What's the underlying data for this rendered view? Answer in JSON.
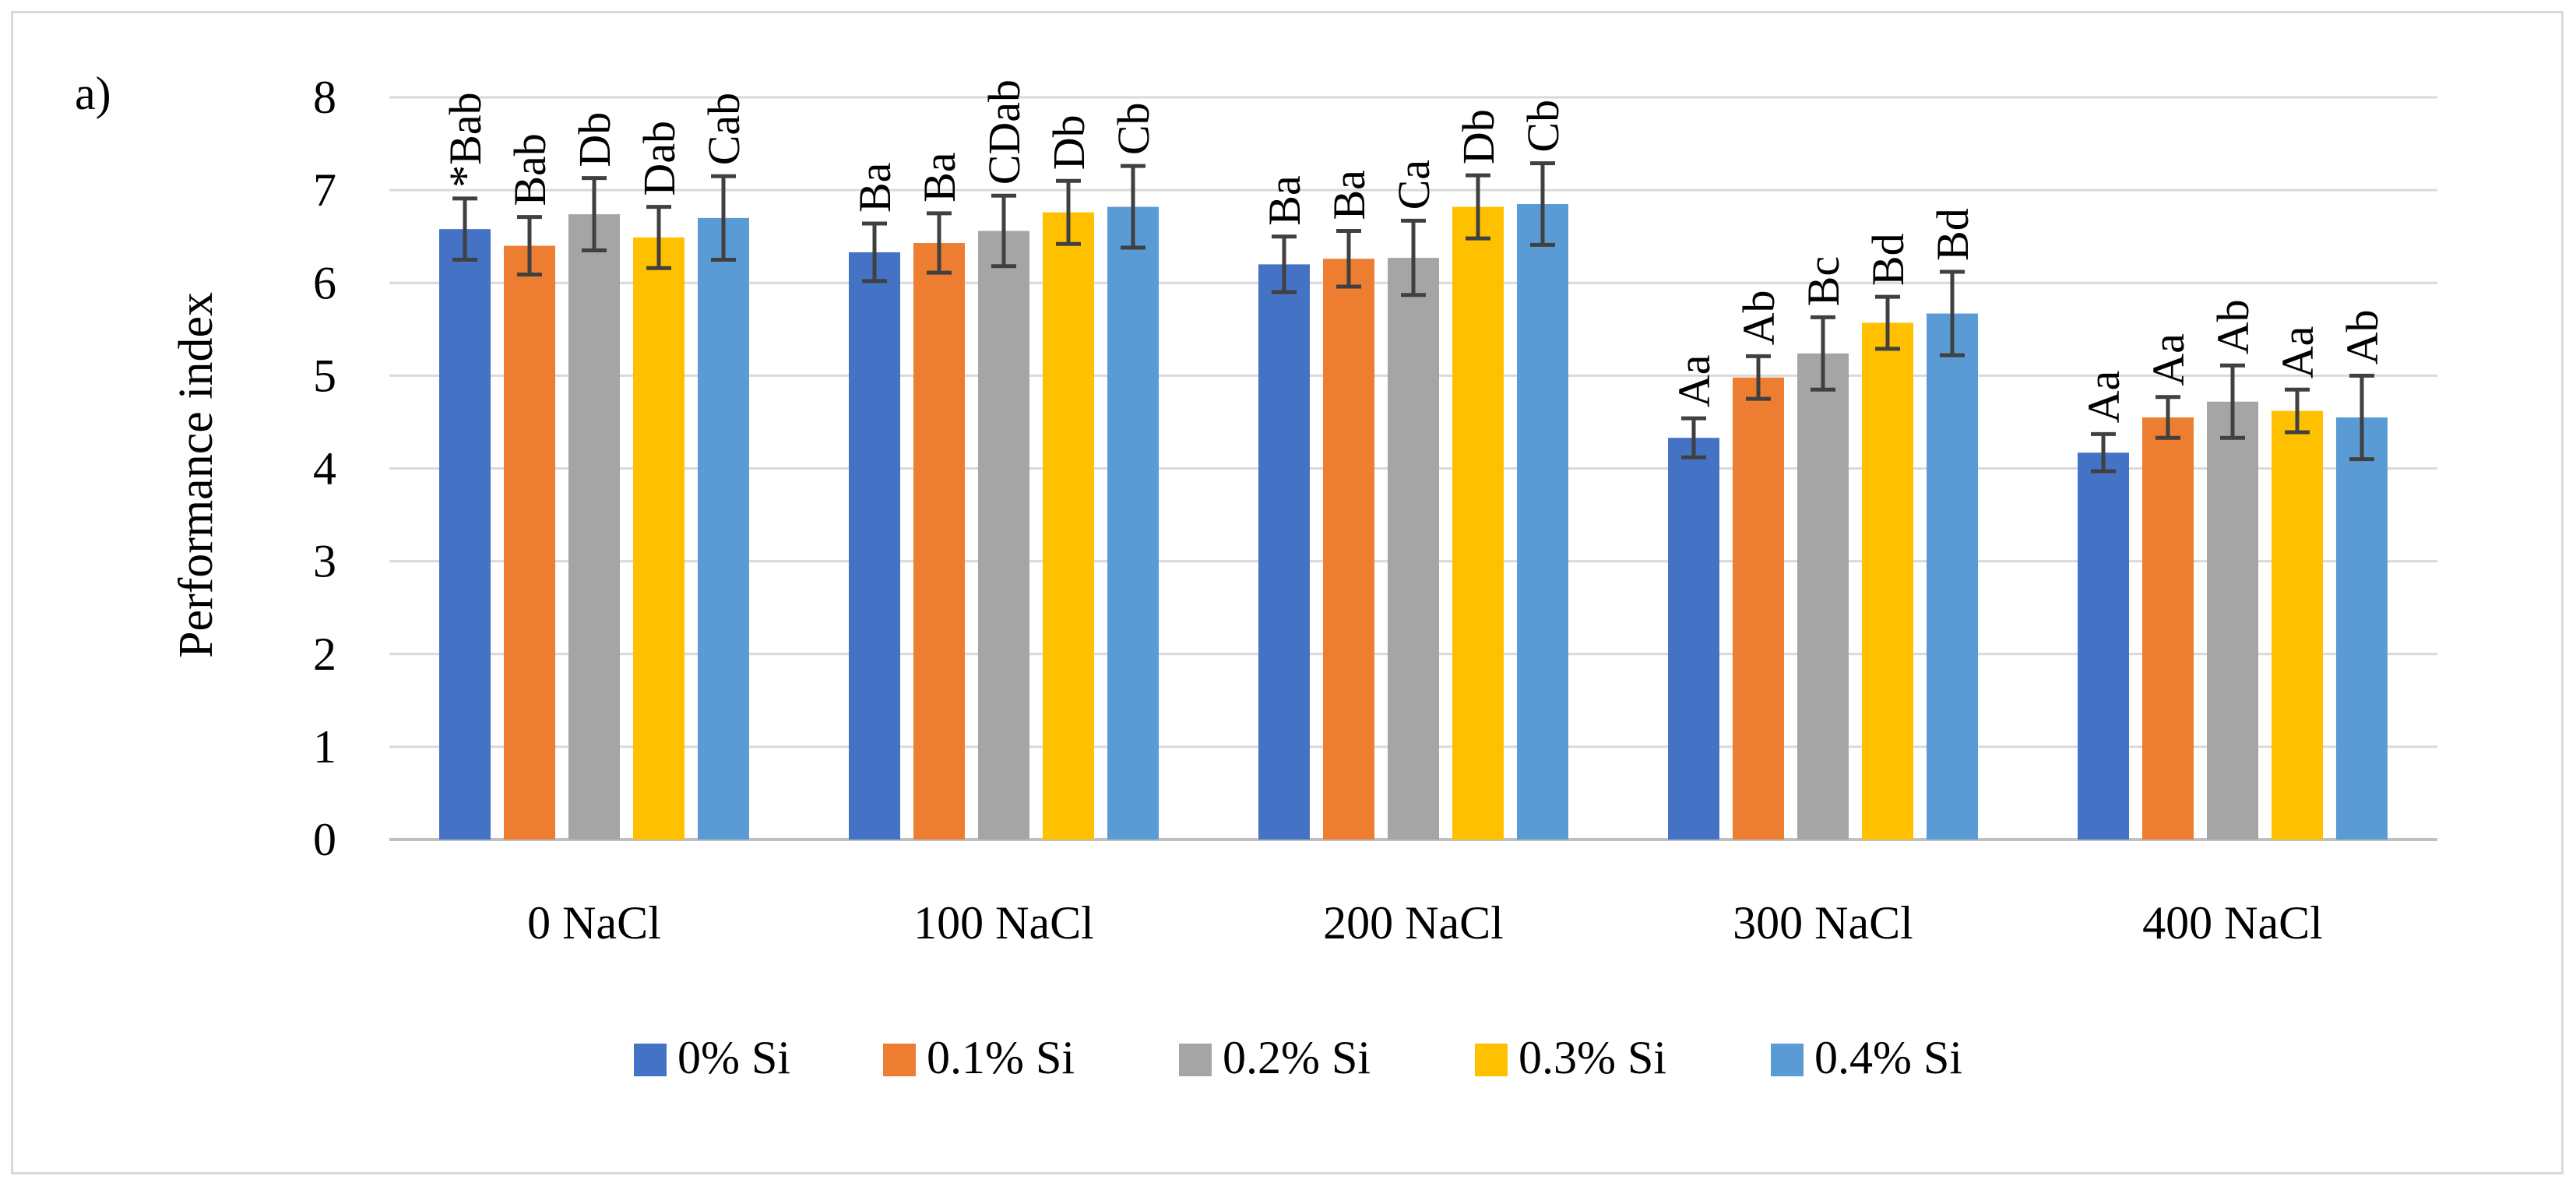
{
  "chart_data": {
    "type": "bar",
    "panel_label": "a)",
    "title": "",
    "xlabel": "",
    "ylabel": "Performance index",
    "ylim": [
      0,
      8
    ],
    "yticks": [
      0,
      1,
      2,
      3,
      4,
      5,
      6,
      7,
      8
    ],
    "grid": true,
    "legend_position": "bottom",
    "categories": [
      "0 NaCl",
      "100 NaCl",
      "200 NaCl",
      "300 NaCl",
      "400 NaCl"
    ],
    "series": [
      {
        "name": "0% Si",
        "color": "#4472c4",
        "values": [
          6.58,
          6.33,
          6.2,
          4.33,
          4.17
        ],
        "errors": [
          0.33,
          0.31,
          0.3,
          0.21,
          0.2
        ],
        "labels": [
          "*Bab",
          "Ba",
          "Ba",
          "Aa",
          "Aa"
        ]
      },
      {
        "name": "0.1% Si",
        "color": "#ed7d31",
        "values": [
          6.4,
          6.43,
          6.26,
          4.98,
          4.55
        ],
        "errors": [
          0.31,
          0.32,
          0.3,
          0.23,
          0.22
        ],
        "labels": [
          "Bab",
          "Ba",
          "Ba",
          "Ab",
          "Aa"
        ]
      },
      {
        "name": "0.2% Si",
        "color": "#a5a5a5",
        "values": [
          6.74,
          6.56,
          6.27,
          5.24,
          4.72
        ],
        "errors": [
          0.39,
          0.38,
          0.4,
          0.39,
          0.39
        ],
        "labels": [
          "Db",
          "CDab",
          "Ca",
          "Bc",
          "Ab"
        ]
      },
      {
        "name": "0.3% Si",
        "color": "#ffc000",
        "values": [
          6.49,
          6.76,
          6.82,
          5.57,
          4.62
        ],
        "errors": [
          0.33,
          0.34,
          0.34,
          0.28,
          0.23
        ],
        "labels": [
          "Dab",
          "Db",
          "Db",
          "Bd",
          "Aa"
        ]
      },
      {
        "name": "0.4% Si",
        "color": "#5b9bd5",
        "values": [
          6.7,
          6.82,
          6.85,
          5.67,
          4.55
        ],
        "errors": [
          0.45,
          0.44,
          0.44,
          0.45,
          0.45
        ],
        "labels": [
          "Cab",
          "Cb",
          "Cb",
          "Bd",
          "Ab"
        ]
      }
    ],
    "colors": {
      "grid": "#d9d9d9",
      "axis": "#bfbfbf",
      "error_bar": "#404040",
      "frame": "#d9d9d9"
    }
  }
}
